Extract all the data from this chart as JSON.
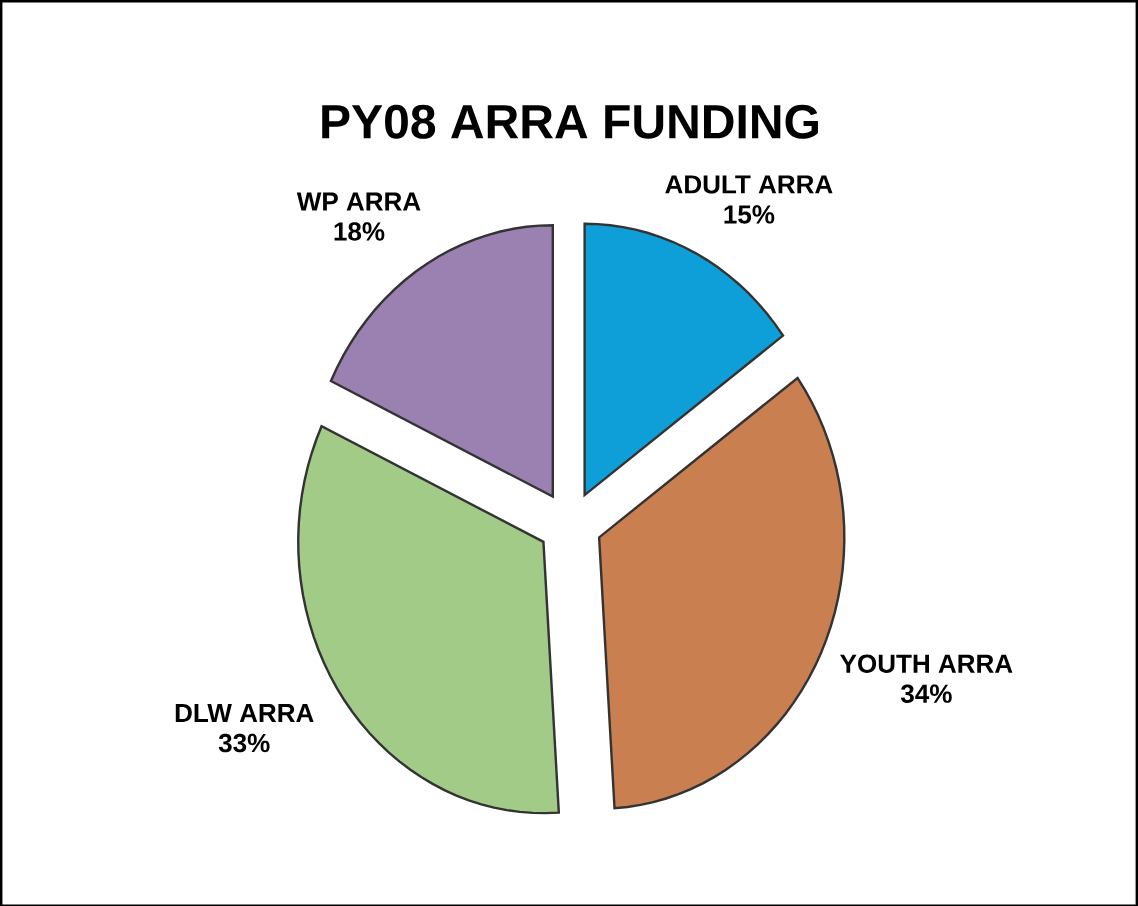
{
  "chart_data": {
    "type": "pie",
    "title": "PY08 ARRA FUNDING",
    "categories": [
      "ADULT ARRA",
      "YOUTH ARRA",
      "DLW ARRA",
      "WP ARRA"
    ],
    "values": [
      15,
      34,
      33,
      18
    ],
    "value_labels": [
      "15%",
      "34%",
      "33%",
      "18%"
    ],
    "colors": [
      "#0f9fd8",
      "#c97f4f",
      "#a2cb88",
      "#9b80b2"
    ]
  }
}
